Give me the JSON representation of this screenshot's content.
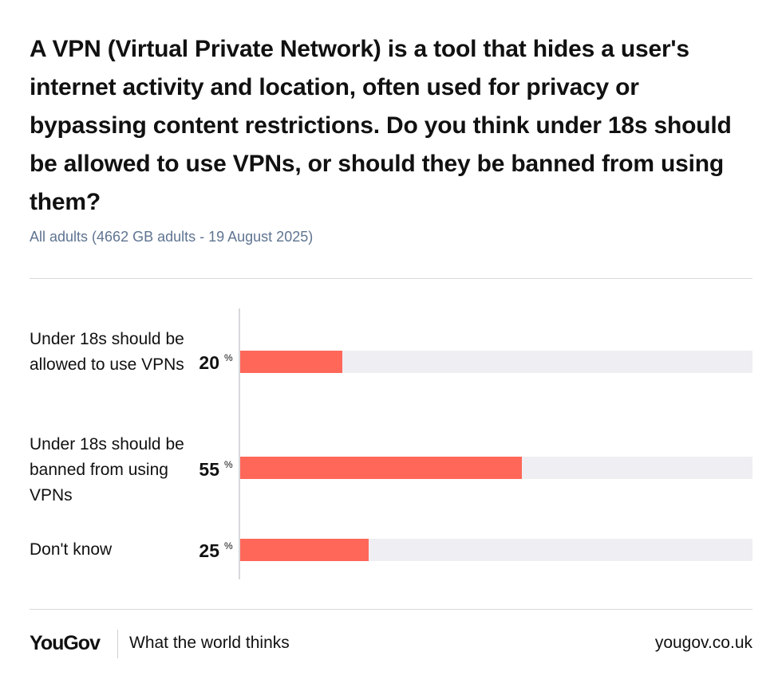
{
  "header": {
    "title": "A VPN (Virtual Private Network) is a tool that hides a user's internet activity and location, often used for privacy or bypassing content restrictions. Do you think under 18s should be allowed to use VPNs, or should they be banned from using them?",
    "subtitle": "All adults (4662 GB adults - 19 August 2025)"
  },
  "chart_data": {
    "type": "bar",
    "orientation": "horizontal",
    "categories": [
      "Under 18s should be allowed to use VPNs",
      "Under 18s should be banned from using VPNs",
      "Don't know"
    ],
    "values": [
      20,
      55,
      25
    ],
    "value_labels": [
      "20",
      "55",
      "25"
    ],
    "unit": "%",
    "xlim": [
      0,
      100
    ],
    "grid": false,
    "legend": "none",
    "title": "A VPN (Virtual Private Network) is a tool that hides a user's internet activity and location, often used for privacy or bypassing content restrictions. Do you think under 18s should be allowed to use VPNs, or should they be banned from using them?",
    "subtitle": "All adults (4662 GB adults - 19 August 2025)"
  },
  "colors": {
    "bar": "#ff6759",
    "track": "#efeff3",
    "subtitle": "#5f7491"
  },
  "footer": {
    "brand": "YouGov",
    "tagline": "What the world thinks",
    "url": "yougov.co.uk"
  }
}
